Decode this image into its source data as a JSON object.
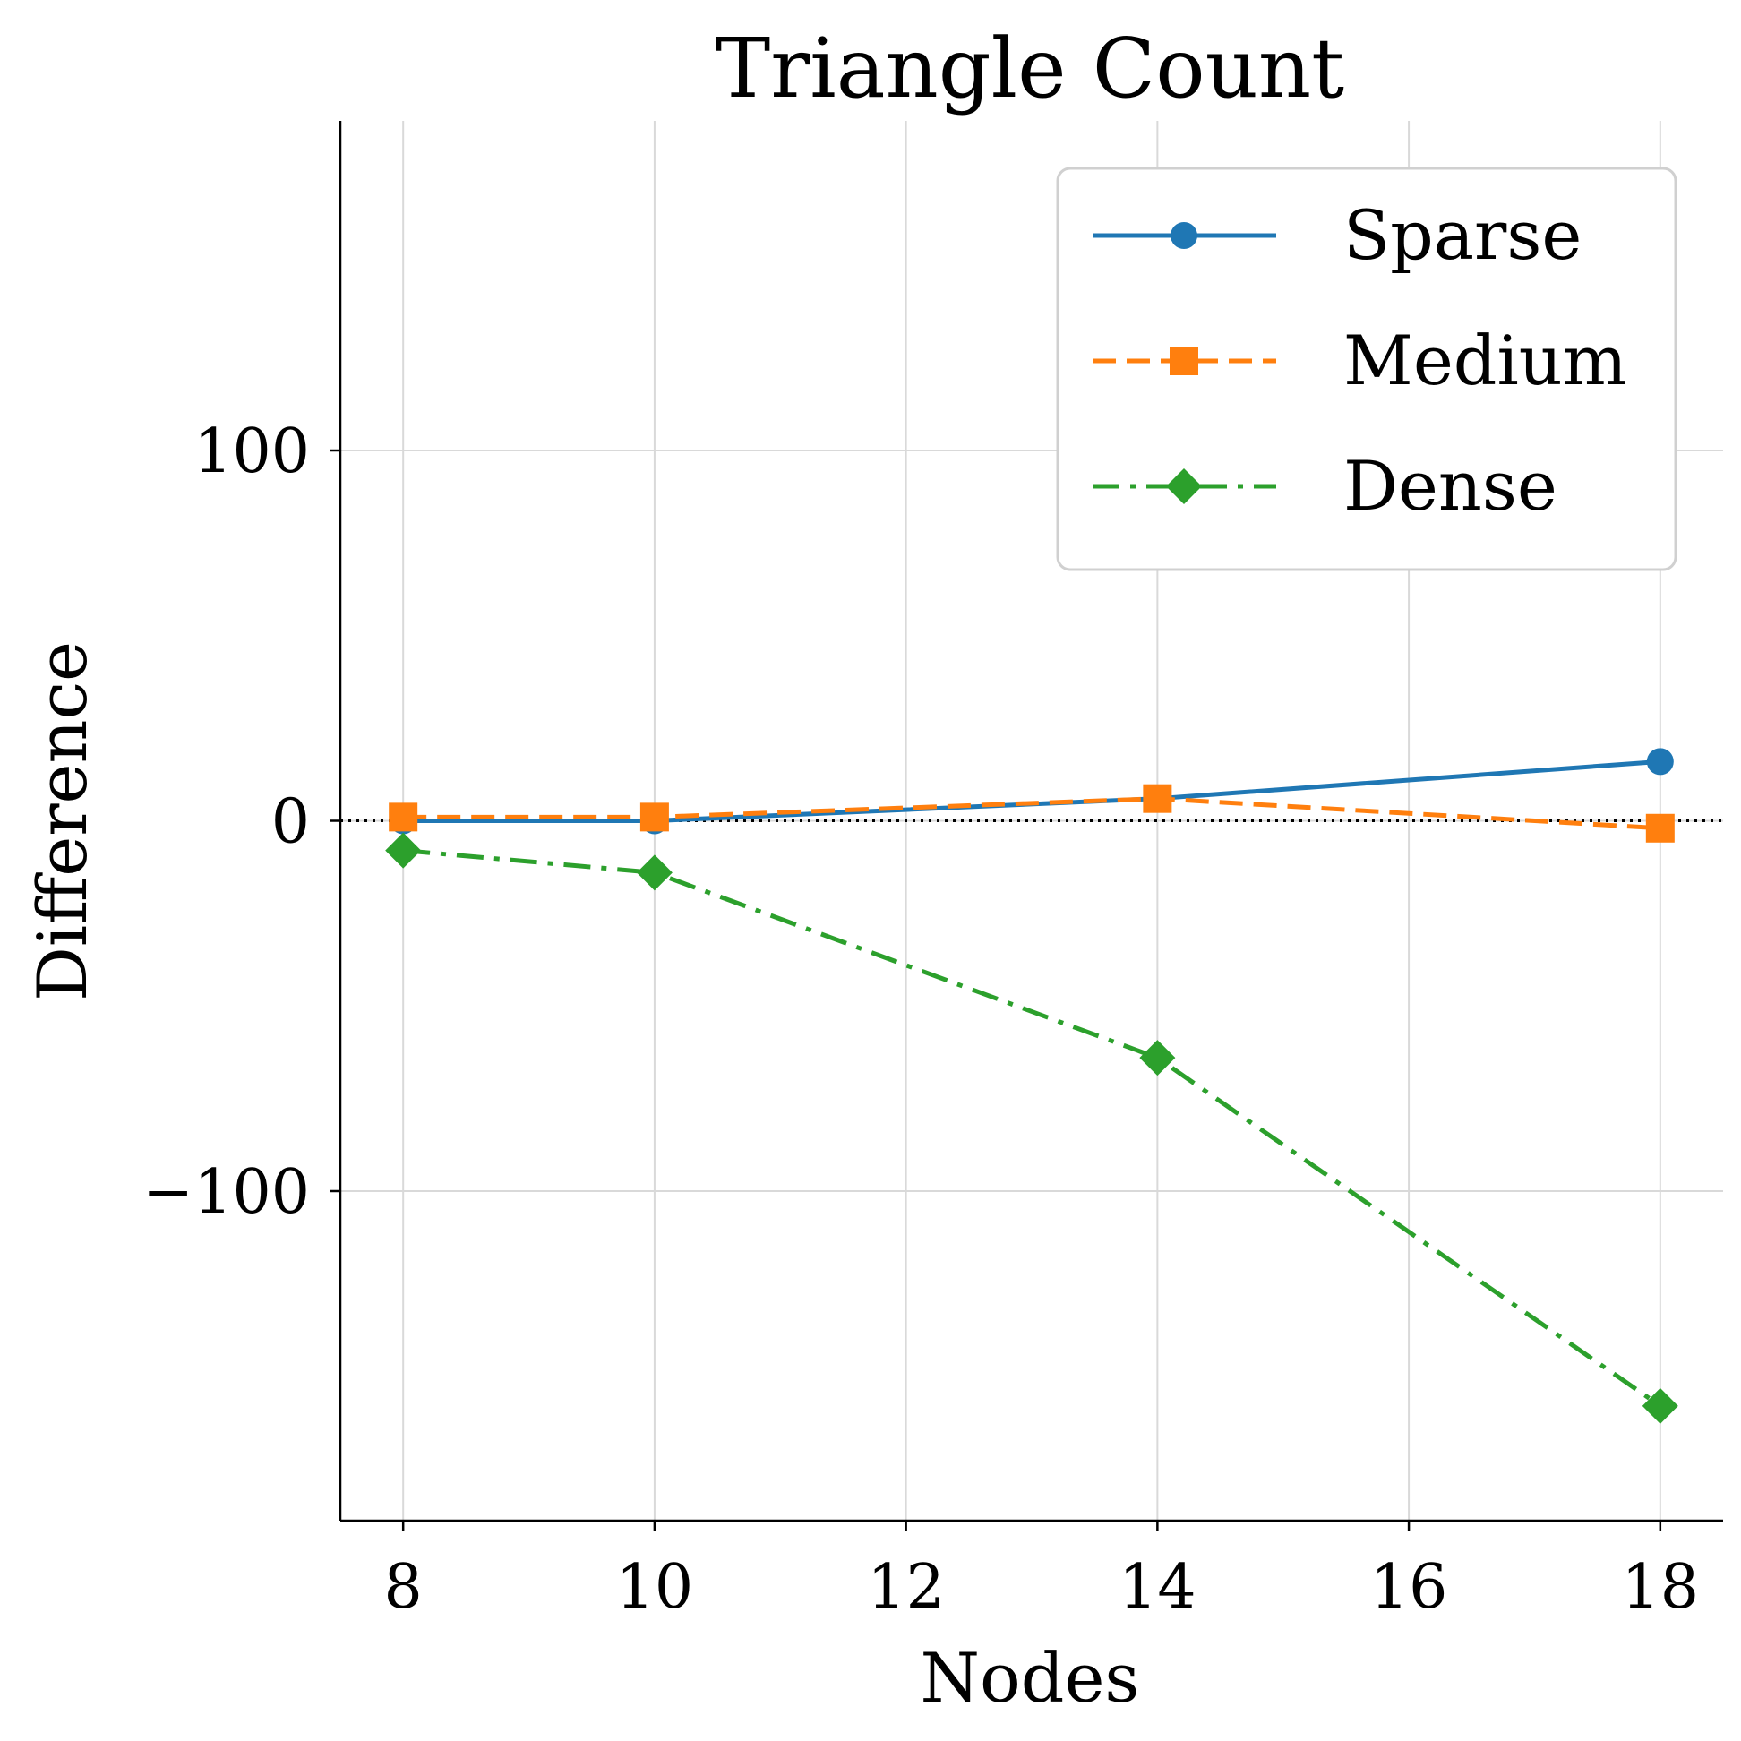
{
  "chart_data": {
    "type": "line",
    "title": "Triangle Count",
    "xlabel": "Nodes",
    "ylabel": "Difference",
    "x": [
      8,
      10,
      14,
      18
    ],
    "xticks": [
      8,
      10,
      12,
      14,
      16,
      18
    ],
    "xtick_labels": [
      "8",
      "10",
      "12",
      "14",
      "16",
      "18"
    ],
    "yticks": [
      100,
      0,
      -100
    ],
    "ytick_labels": [
      "100",
      "0",
      "−100"
    ],
    "xlim": [
      7.5,
      18.5
    ],
    "ylim": [
      -189,
      189
    ],
    "grid": true,
    "reference_line": {
      "y": 0,
      "style": "dotted",
      "color": "#000000"
    },
    "legend": {
      "placement": "top-right"
    },
    "series": [
      {
        "name": "Sparse",
        "values": [
          0,
          0,
          6,
          16
        ],
        "color": "#1f77b4",
        "marker": "circle",
        "linestyle": "solid"
      },
      {
        "name": "Medium",
        "values": [
          1,
          1,
          6,
          -2
        ],
        "color": "#ff7f0e",
        "marker": "square",
        "linestyle": "dashed"
      },
      {
        "name": "Dense",
        "values": [
          -8,
          -14,
          -64,
          -158
        ],
        "color": "#2ca02c",
        "marker": "diamond",
        "linestyle": "dashdot"
      }
    ]
  }
}
